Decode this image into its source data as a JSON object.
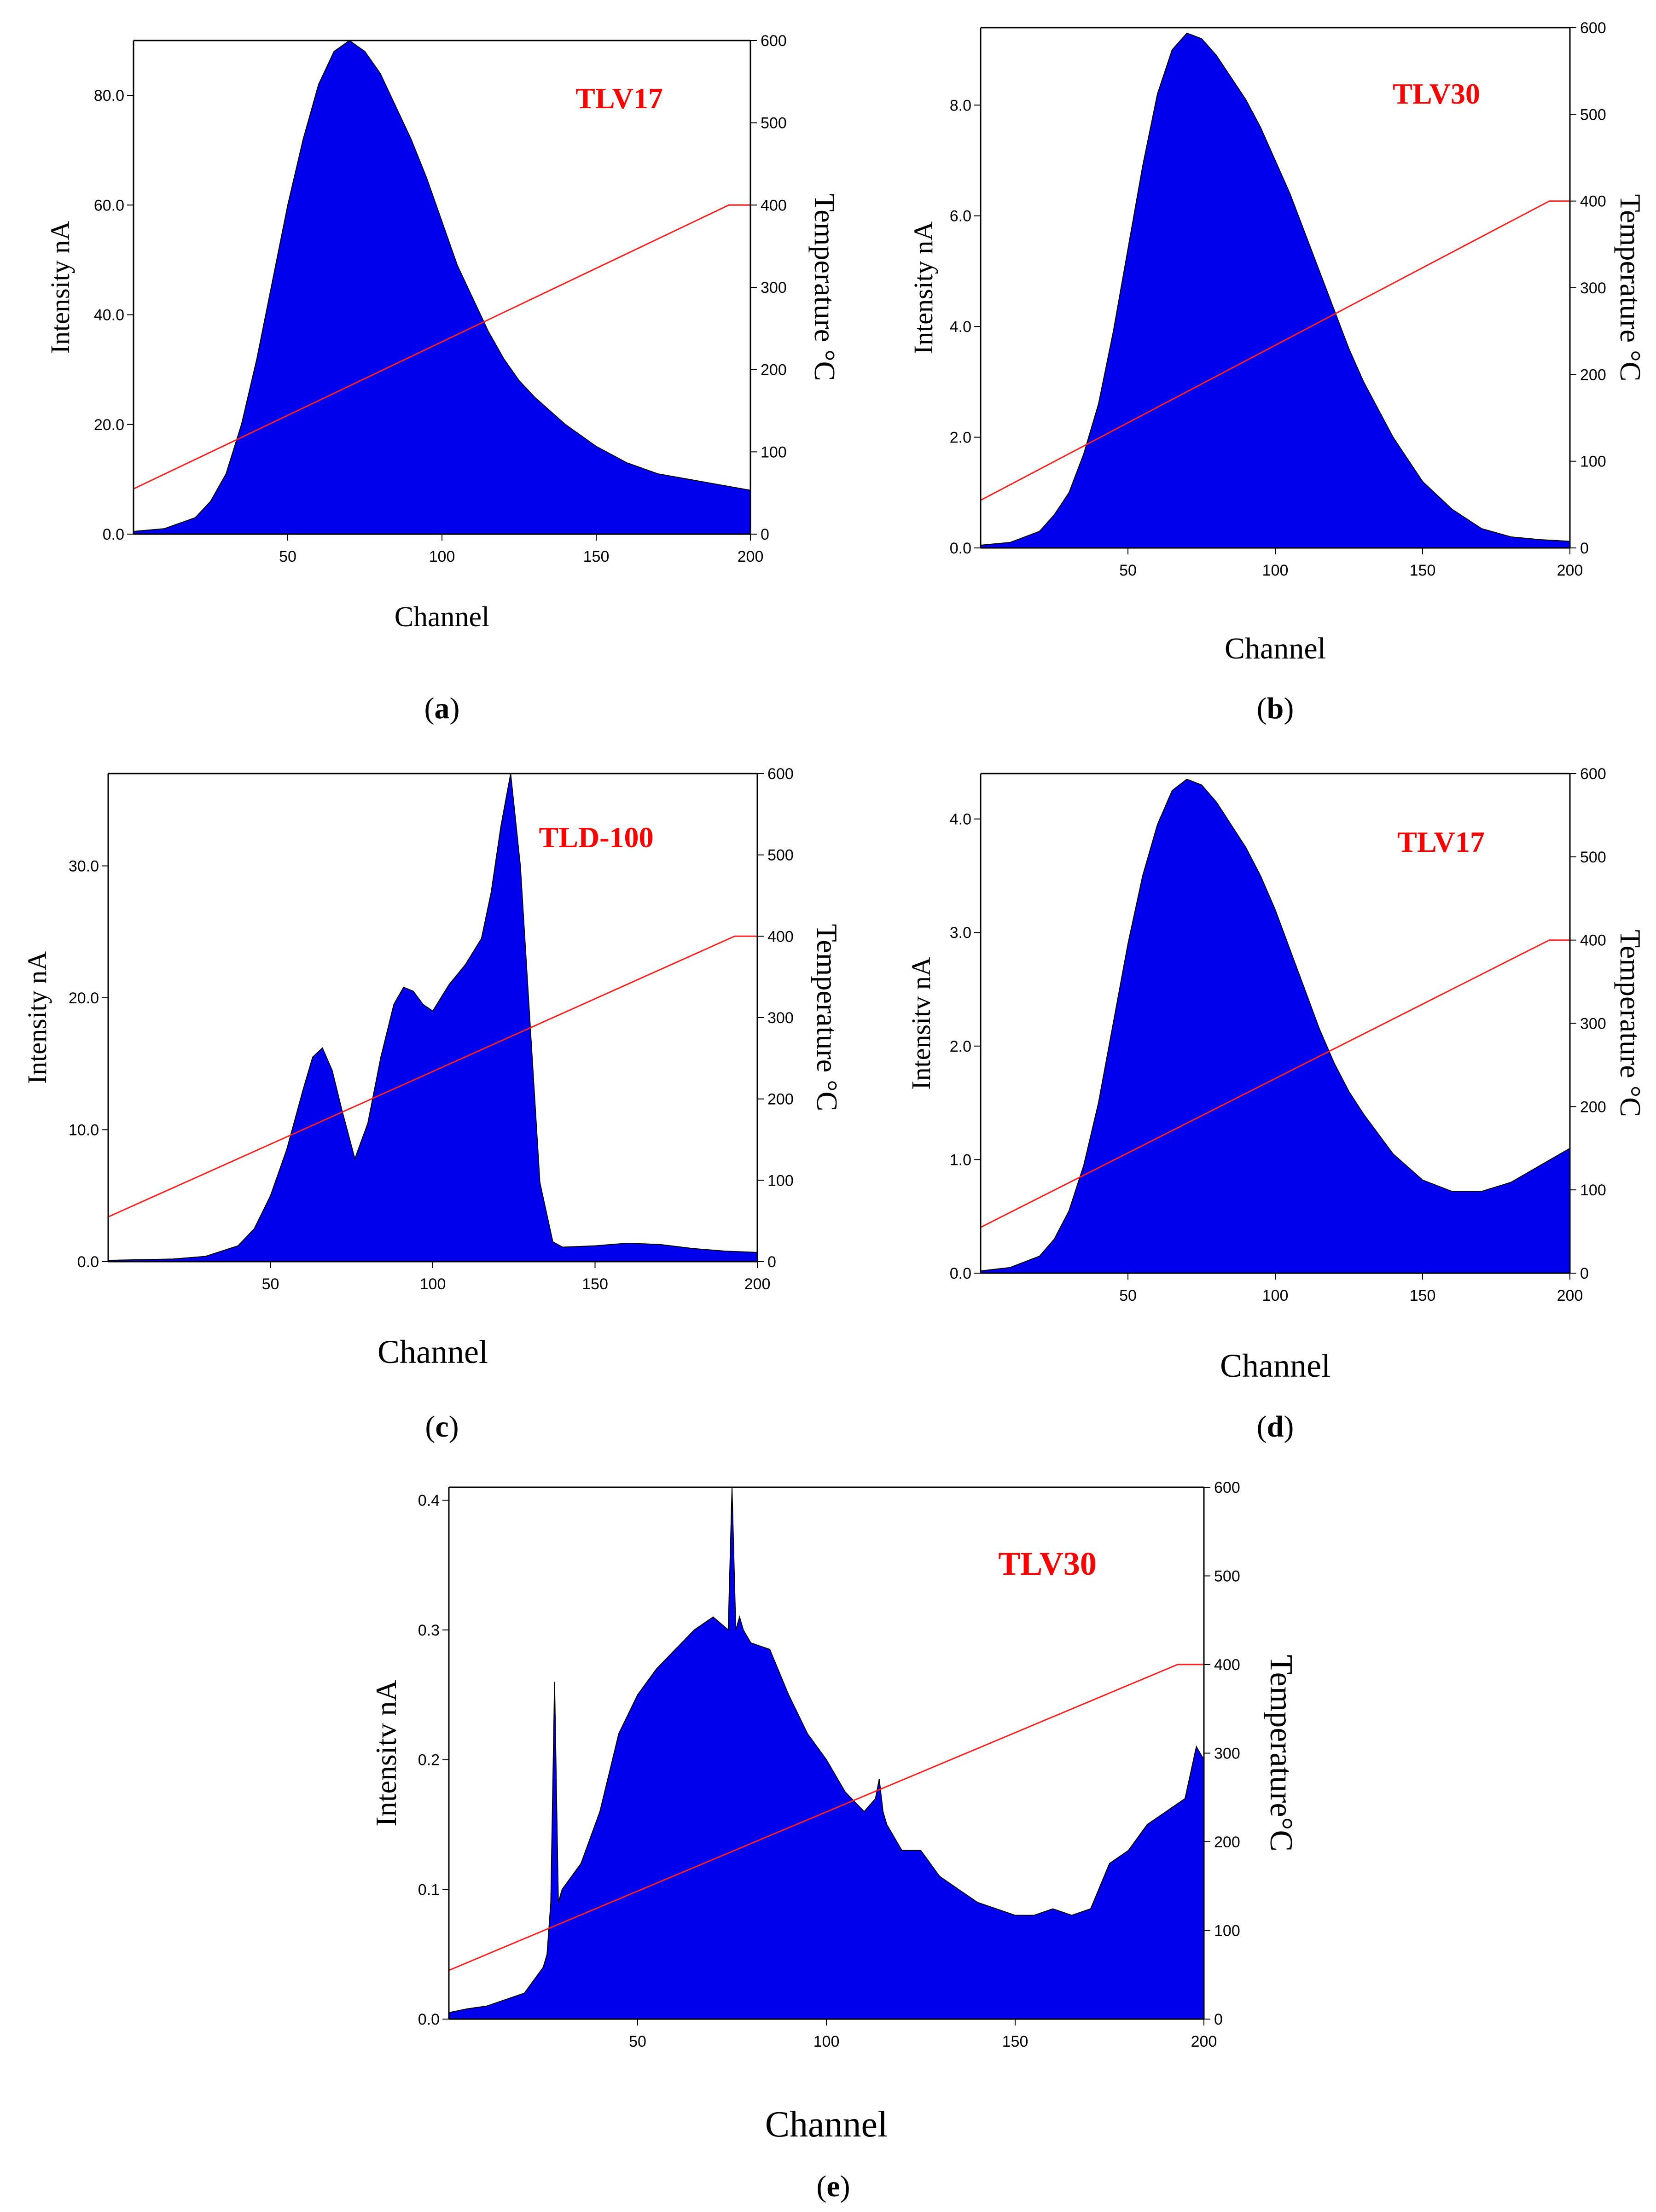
{
  "chart_data": [
    {
      "type": "area",
      "panel": "a",
      "caption_letter": "a",
      "label": "TLV17",
      "xlabel": "Channel",
      "ylabel": "Intensity nA",
      "y2label": "Temperature °C",
      "xlim": [
        0,
        200
      ],
      "ylim": [
        0,
        90
      ],
      "y2lim": [
        0,
        600
      ],
      "xticks": [
        "50",
        "100",
        "150",
        "200"
      ],
      "yticks": [
        "0.0",
        "20.0",
        "40.0",
        "60.0",
        "80.0"
      ],
      "y2ticks": [
        "0",
        "100",
        "200",
        "300",
        "400",
        "500",
        "600"
      ],
      "series": [
        {
          "name": "Intensity",
          "color": "#0000ee",
          "x": [
            0,
            10,
            20,
            25,
            30,
            35,
            40,
            45,
            50,
            55,
            60,
            65,
            70,
            75,
            80,
            85,
            90,
            95,
            100,
            105,
            110,
            115,
            120,
            125,
            130,
            140,
            150,
            160,
            170,
            180,
            190,
            200
          ],
          "values": [
            0.5,
            1,
            3,
            6,
            11,
            20,
            32,
            46,
            60,
            72,
            82,
            88,
            90,
            88,
            84,
            78,
            72,
            65,
            57,
            49,
            43,
            37,
            32,
            28,
            25,
            20,
            16,
            13,
            11,
            10,
            9,
            8
          ]
        },
        {
          "name": "Temperature",
          "color": "#ff2020",
          "x": [
            0,
            193,
            200
          ],
          "values": [
            55,
            400,
            400
          ]
        }
      ]
    },
    {
      "type": "area",
      "panel": "b",
      "caption_letter": "b",
      "label": "TLV30",
      "xlabel": "Channel",
      "ylabel": "Intensity nA",
      "y2label": "Temperature °C",
      "xlim": [
        0,
        200
      ],
      "ylim": [
        0,
        9.4
      ],
      "y2lim": [
        0,
        600
      ],
      "xticks": [
        "50",
        "100",
        "150",
        "200"
      ],
      "yticks": [
        "0.0",
        "2.0",
        "4.0",
        "6.0",
        "8.0"
      ],
      "y2ticks": [
        "0",
        "100",
        "200",
        "300",
        "400",
        "500",
        "600"
      ],
      "series": [
        {
          "name": "Intensity",
          "color": "#0000ee",
          "x": [
            0,
            10,
            20,
            25,
            30,
            35,
            40,
            45,
            50,
            55,
            60,
            65,
            70,
            75,
            80,
            85,
            90,
            95,
            100,
            105,
            110,
            115,
            120,
            125,
            130,
            140,
            150,
            160,
            170,
            180,
            190,
            200
          ],
          "values": [
            0.05,
            0.1,
            0.3,
            0.6,
            1.0,
            1.7,
            2.6,
            3.9,
            5.4,
            6.9,
            8.2,
            9.0,
            9.3,
            9.2,
            8.9,
            8.5,
            8.1,
            7.6,
            7.0,
            6.4,
            5.7,
            5.0,
            4.3,
            3.6,
            3.0,
            2.0,
            1.2,
            0.7,
            0.35,
            0.2,
            0.15,
            0.12
          ]
        },
        {
          "name": "Temperature",
          "color": "#ff2020",
          "x": [
            0,
            193,
            200
          ],
          "values": [
            55,
            400,
            400
          ]
        }
      ]
    },
    {
      "type": "area",
      "panel": "c",
      "caption_letter": "c",
      "label": "TLD-100",
      "xlabel": "Channel",
      "ylabel": "Intensity nA",
      "y2label": "Temperature °C",
      "xlim": [
        0,
        200
      ],
      "ylim": [
        0,
        37
      ],
      "y2lim": [
        0,
        600
      ],
      "xticks": [
        "50",
        "100",
        "150",
        "200"
      ],
      "yticks": [
        "0.0",
        "10.0",
        "20.0",
        "30.0"
      ],
      "y2ticks": [
        "0",
        "100",
        "200",
        "300",
        "400",
        "500",
        "600"
      ],
      "series": [
        {
          "name": "Intensity",
          "color": "#0000ee",
          "x": [
            0,
            20,
            30,
            40,
            45,
            50,
            55,
            60,
            63,
            66,
            69,
            72,
            76,
            80,
            84,
            88,
            91,
            94,
            97,
            100,
            105,
            110,
            115,
            118,
            121,
            124,
            127,
            130,
            133,
            137,
            140,
            150,
            160,
            170,
            180,
            190,
            200
          ],
          "values": [
            0.1,
            0.2,
            0.4,
            1.2,
            2.5,
            5.0,
            8.5,
            13.0,
            15.5,
            16.2,
            14.5,
            11.5,
            7.8,
            10.5,
            15.5,
            19.5,
            20.8,
            20.5,
            19.5,
            19.0,
            21.0,
            22.5,
            24.5,
            28.0,
            33.0,
            37.0,
            30.0,
            18.0,
            6.0,
            1.5,
            1.1,
            1.2,
            1.4,
            1.3,
            1.0,
            0.8,
            0.7
          ]
        },
        {
          "name": "Temperature",
          "color": "#ff2020",
          "x": [
            0,
            193,
            200
          ],
          "values": [
            55,
            400,
            400
          ]
        }
      ]
    },
    {
      "type": "area",
      "panel": "d",
      "caption_letter": "d",
      "label": "TLV17",
      "xlabel": "Channel",
      "ylabel": "Intensitv nA",
      "y2label": "Temperature °C",
      "xlim": [
        0,
        200
      ],
      "ylim": [
        0,
        4.4
      ],
      "y2lim": [
        0,
        600
      ],
      "xticks": [
        "50",
        "100",
        "150",
        "200"
      ],
      "yticks": [
        "0.0",
        "1.0",
        "2.0",
        "3.0",
        "4.0"
      ],
      "y2ticks": [
        "0",
        "100",
        "200",
        "300",
        "400",
        "500",
        "600"
      ],
      "series": [
        {
          "name": "Intensity",
          "color": "#0000ee",
          "x": [
            0,
            10,
            20,
            25,
            30,
            35,
            40,
            45,
            50,
            55,
            60,
            65,
            70,
            75,
            80,
            85,
            90,
            95,
            100,
            105,
            110,
            115,
            120,
            125,
            130,
            140,
            150,
            160,
            170,
            180,
            190,
            200
          ],
          "values": [
            0.02,
            0.05,
            0.15,
            0.3,
            0.55,
            0.95,
            1.5,
            2.2,
            2.9,
            3.5,
            3.95,
            4.25,
            4.35,
            4.3,
            4.15,
            3.95,
            3.75,
            3.5,
            3.2,
            2.85,
            2.5,
            2.15,
            1.85,
            1.6,
            1.4,
            1.05,
            0.82,
            0.72,
            0.72,
            0.8,
            0.95,
            1.1
          ]
        },
        {
          "name": "Temperature",
          "color": "#ff2020",
          "x": [
            0,
            193,
            200
          ],
          "values": [
            55,
            400,
            400
          ]
        }
      ]
    },
    {
      "type": "area",
      "panel": "e",
      "caption_letter": "e",
      "label": "TLV30",
      "xlabel": "Channel",
      "ylabel": "Intensitv nA",
      "y2label": "Temperature°C",
      "xlim": [
        0,
        200
      ],
      "ylim": [
        0,
        0.41
      ],
      "y2lim": [
        0,
        600
      ],
      "xticks": [
        "50",
        "100",
        "150",
        "200"
      ],
      "yticks": [
        "0.0",
        "0.1",
        "0.2",
        "0.3",
        "0.4"
      ],
      "y2ticks": [
        "0",
        "100",
        "200",
        "300",
        "400",
        "500",
        "600"
      ],
      "series": [
        {
          "name": "Intensity",
          "color": "#0000ee",
          "x": [
            0,
            5,
            10,
            15,
            20,
            25,
            26,
            27,
            28,
            29,
            30,
            35,
            40,
            45,
            50,
            55,
            60,
            65,
            70,
            74,
            75,
            76,
            77,
            78,
            80,
            85,
            90,
            95,
            100,
            105,
            110,
            113,
            114,
            115,
            116,
            120,
            125,
            130,
            135,
            140,
            145,
            150,
            155,
            160,
            165,
            170,
            175,
            180,
            185,
            190,
            195,
            198,
            200
          ],
          "values": [
            0.005,
            0.008,
            0.01,
            0.015,
            0.02,
            0.04,
            0.05,
            0.09,
            0.26,
            0.09,
            0.1,
            0.12,
            0.16,
            0.22,
            0.25,
            0.27,
            0.285,
            0.3,
            0.31,
            0.3,
            0.41,
            0.3,
            0.31,
            0.3,
            0.29,
            0.285,
            0.25,
            0.22,
            0.2,
            0.175,
            0.16,
            0.17,
            0.185,
            0.16,
            0.15,
            0.13,
            0.13,
            0.11,
            0.1,
            0.09,
            0.085,
            0.08,
            0.08,
            0.085,
            0.08,
            0.085,
            0.12,
            0.13,
            0.15,
            0.16,
            0.17,
            0.21,
            0.2
          ]
        },
        {
          "name": "Temperature",
          "color": "#ff2020",
          "x": [
            0,
            193,
            200
          ],
          "values": [
            55,
            400,
            400
          ]
        }
      ]
    }
  ]
}
